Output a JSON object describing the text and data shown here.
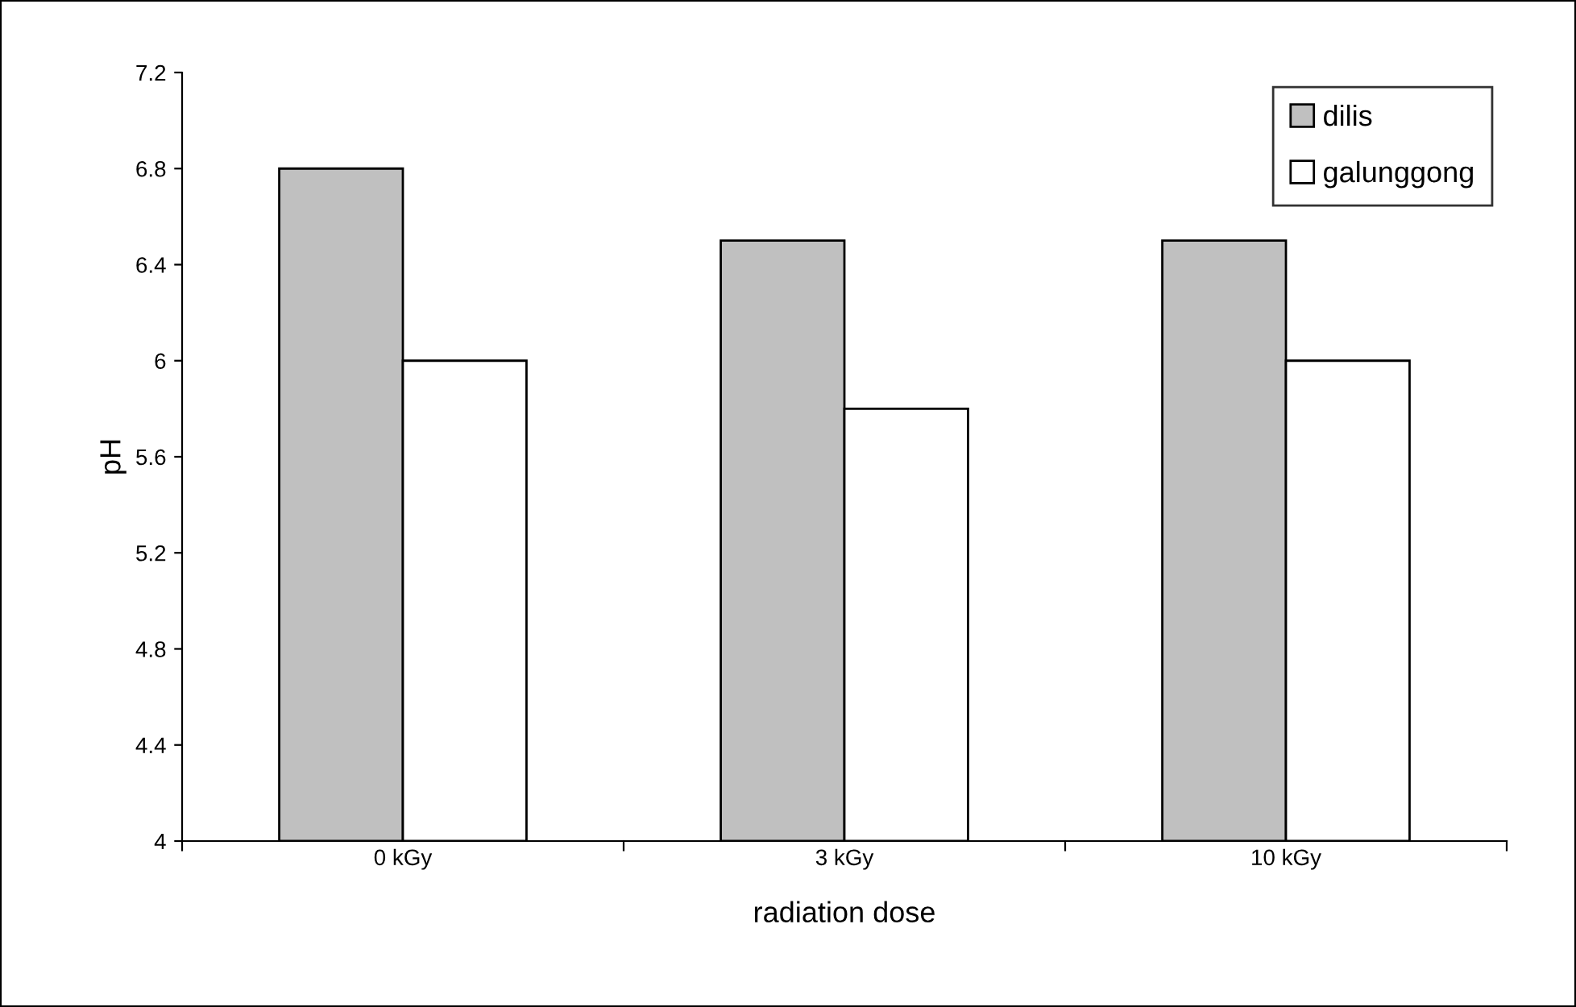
{
  "chart_data": {
    "type": "bar",
    "xlabel": "radiation dose",
    "ylabel": "pH",
    "categories": [
      "0 kGy",
      "3 kGy",
      "10 kGy"
    ],
    "series": [
      {
        "name": "dilis",
        "color": "#c0c0c0",
        "values": [
          6.8,
          6.5,
          6.5
        ]
      },
      {
        "name": "galunggong",
        "color": "#ffffff",
        "values": [
          6.0,
          5.8,
          6.0
        ]
      }
    ],
    "ylim": [
      4,
      7.2
    ],
    "yticks": [
      4,
      4.4,
      4.8,
      5.2,
      5.6,
      6,
      6.4,
      6.8,
      7.2
    ],
    "grid": false,
    "legend": "top right"
  }
}
